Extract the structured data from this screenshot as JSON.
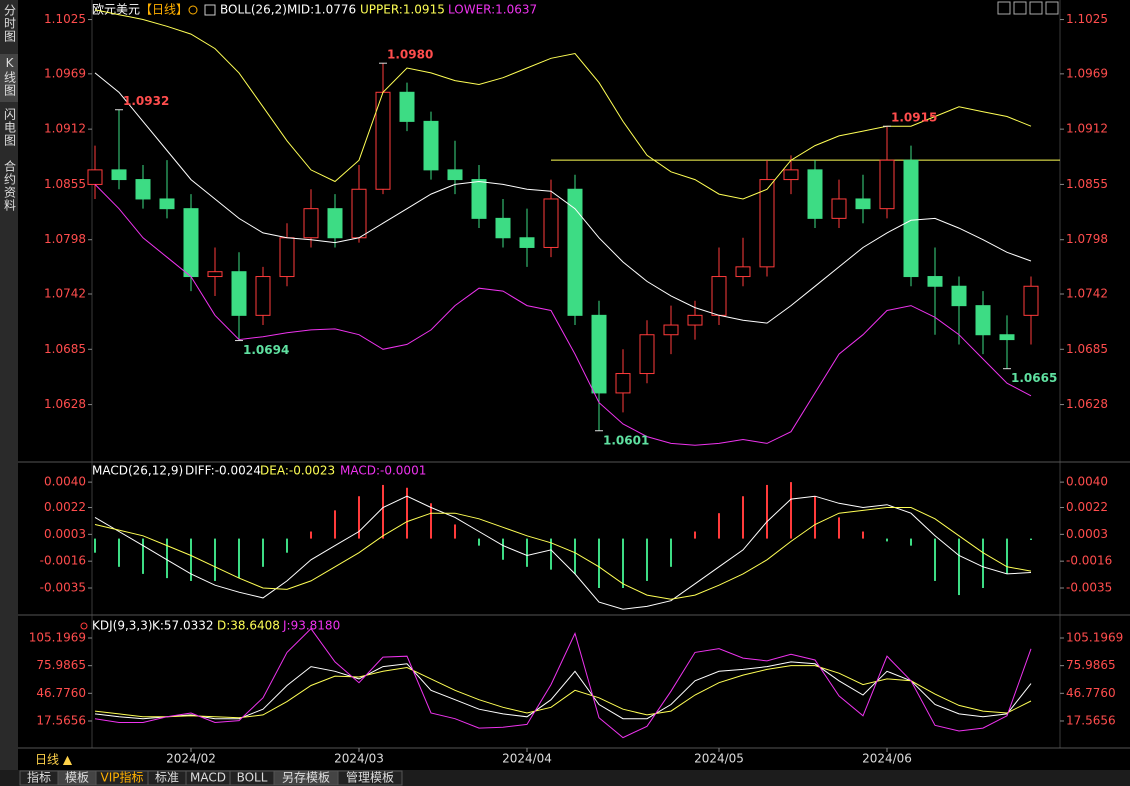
{
  "ui": {
    "side_tabs": [
      "分时图",
      "K线图",
      "闪电图",
      "合约资料"
    ],
    "period_button": "日线 ▲",
    "bottom_tabs": [
      "指标",
      "模板",
      "VIP指标",
      "标准",
      "MACD",
      "BOLL",
      "另存模板",
      "管理模板"
    ]
  },
  "chart_data": {
    "type": "candlestick",
    "title": "欧元美元",
    "period": "【日线】",
    "legend": [
      "BOLL(26,2)",
      "MID:1.0776",
      "UPPER:1.0915",
      "LOWER:1.0637"
    ],
    "categories": [
      null,
      null,
      null,
      null,
      "2024/02",
      null,
      null,
      null,
      null,
      null,
      null,
      "2024/03",
      null,
      null,
      null,
      null,
      null,
      null,
      "2024/04",
      null,
      null,
      null,
      null,
      null,
      null,
      null,
      "2024/05",
      null,
      null,
      null,
      null,
      null,
      null,
      "2024/06",
      null,
      null,
      null,
      null,
      null,
      null
    ],
    "open": [
      1.0855,
      1.087,
      1.086,
      1.084,
      1.083,
      1.076,
      1.0765,
      1.072,
      1.076,
      1.08,
      1.083,
      1.08,
      1.085,
      1.095,
      1.092,
      1.087,
      1.086,
      1.082,
      1.08,
      1.079,
      1.085,
      1.072,
      1.064,
      1.066,
      1.07,
      1.071,
      1.072,
      1.076,
      1.077,
      1.086,
      1.087,
      1.082,
      1.084,
      1.083,
      1.088,
      1.076,
      1.075,
      1.073,
      1.07,
      1.072
    ],
    "close": [
      1.087,
      1.086,
      1.084,
      1.083,
      1.076,
      1.0765,
      1.072,
      1.076,
      1.08,
      1.083,
      1.08,
      1.085,
      1.095,
      1.092,
      1.087,
      1.086,
      1.082,
      1.08,
      1.079,
      1.084,
      1.072,
      1.064,
      1.066,
      1.07,
      1.071,
      1.072,
      1.076,
      1.077,
      1.086,
      1.087,
      1.082,
      1.084,
      1.083,
      1.088,
      1.076,
      1.075,
      1.073,
      1.07,
      1.0695,
      1.075
    ],
    "high": [
      1.0895,
      1.0932,
      1.0875,
      1.088,
      1.0845,
      1.079,
      1.0785,
      1.077,
      1.0815,
      1.085,
      1.0845,
      1.0875,
      1.098,
      1.096,
      1.093,
      1.09,
      1.0875,
      1.084,
      1.083,
      1.086,
      1.0865,
      1.0735,
      1.0685,
      1.0715,
      1.073,
      1.0735,
      1.079,
      1.08,
      1.088,
      1.0885,
      1.088,
      1.086,
      1.0865,
      1.0915,
      1.0895,
      1.079,
      1.076,
      1.0745,
      1.072,
      1.076
    ],
    "low": [
      1.084,
      1.085,
      1.083,
      1.082,
      1.0745,
      1.074,
      1.0694,
      1.071,
      1.075,
      1.079,
      1.079,
      1.0795,
      1.0845,
      1.091,
      1.086,
      1.0845,
      1.081,
      1.079,
      1.077,
      1.078,
      1.071,
      1.0601,
      1.062,
      1.065,
      1.068,
      1.0695,
      1.071,
      1.075,
      1.076,
      1.0845,
      1.081,
      1.081,
      1.0815,
      1.082,
      1.075,
      1.07,
      1.069,
      1.068,
      1.0665,
      1.069
    ],
    "up_color": "#ff3b3b",
    "down_color": "#3ddc84",
    "ylim": [
      1.0576,
      1.104
    ],
    "yticks": [
      1.1025,
      1.0969,
      1.0912,
      1.0855,
      1.0798,
      1.0742,
      1.0685,
      1.0628
    ],
    "boll": {
      "colors": [
        "#ffffff",
        "#ffff55",
        "#ee33ee"
      ],
      "mid": [
        1.097,
        1.095,
        1.092,
        1.089,
        1.086,
        1.084,
        1.082,
        1.0805,
        1.08,
        1.0798,
        1.0795,
        1.08,
        1.0815,
        1.083,
        1.0845,
        1.0855,
        1.0858,
        1.0855,
        1.085,
        1.0848,
        1.083,
        1.08,
        1.0775,
        1.0755,
        1.074,
        1.0728,
        1.072,
        1.0715,
        1.0712,
        1.073,
        1.075,
        1.077,
        1.079,
        1.0805,
        1.0818,
        1.082,
        1.081,
        1.0798,
        1.0785,
        1.0776
      ],
      "upper": [
        1.1035,
        1.103,
        1.1025,
        1.1018,
        1.101,
        1.0995,
        1.097,
        1.0935,
        1.09,
        1.087,
        1.0858,
        1.088,
        1.095,
        1.0975,
        1.097,
        1.0962,
        1.0958,
        1.0965,
        1.0975,
        1.0985,
        1.099,
        1.096,
        1.092,
        1.0885,
        1.0868,
        1.086,
        1.0845,
        1.084,
        1.085,
        1.088,
        1.0895,
        1.0905,
        1.091,
        1.0915,
        1.0915,
        1.0925,
        1.0935,
        1.093,
        1.0925,
        1.0915
      ],
      "lower": [
        1.0855,
        1.083,
        1.08,
        1.078,
        1.076,
        1.072,
        1.0695,
        1.0698,
        1.0702,
        1.0705,
        1.0706,
        1.07,
        1.0685,
        1.069,
        1.0705,
        1.073,
        1.0748,
        1.0745,
        1.073,
        1.0725,
        1.068,
        1.063,
        1.0608,
        1.0595,
        1.0588,
        1.0586,
        1.0588,
        1.0592,
        1.0588,
        1.06,
        1.064,
        1.068,
        1.07,
        1.0725,
        1.073,
        1.0718,
        1.07,
        1.0675,
        1.065,
        1.0637
      ]
    },
    "extremes": [
      {
        "index": 1,
        "value": 1.0932,
        "label": "1.0932"
      },
      {
        "index": 12,
        "value": 1.098,
        "label": "1.0980"
      },
      {
        "index": 33,
        "value": 1.0915,
        "label": "1.0915"
      },
      {
        "index": 6,
        "value": 1.0694,
        "label": "1.0694"
      },
      {
        "index": 21,
        "value": 1.0601,
        "label": "1.0601"
      },
      {
        "index": 38,
        "value": 1.0665,
        "label": "1.0665"
      }
    ],
    "hline": {
      "value": 1.088,
      "start": 19,
      "color": "#ffff55"
    },
    "macd": {
      "legend": [
        "MACD(26,12,9)",
        "DIFF:-0.0024",
        "DEA:-0.0023",
        "MACD:-0.0001"
      ],
      "ylim": [
        -0.0052,
        0.005
      ],
      "yticks": [
        {
          "value": 0.004,
          "label": "0.0040"
        },
        {
          "value": 0.0022,
          "label": "0.0022"
        },
        {
          "value": 0.0003,
          "label": "0.0003"
        },
        {
          "value": -0.0016,
          "label": "-0.0016"
        },
        {
          "value": -0.0035,
          "label": "-0.0035"
        }
      ],
      "diff": [
        0.0015,
        0.0005,
        -0.0005,
        -0.0015,
        -0.0025,
        -0.0033,
        -0.0038,
        -0.0042,
        -0.003,
        -0.0015,
        -0.0005,
        0.0005,
        0.0022,
        0.003,
        0.0022,
        0.0015,
        0.0005,
        -0.0005,
        -0.0012,
        -0.0008,
        -0.0025,
        -0.0045,
        -0.005,
        -0.0048,
        -0.0044,
        -0.0032,
        -0.002,
        -0.0008,
        0.0012,
        0.0028,
        0.003,
        0.0025,
        0.0022,
        0.0024,
        0.0018,
        0.0002,
        -0.0012,
        -0.002,
        -0.0025,
        -0.0024
      ],
      "dea": [
        0.001,
        0.0006,
        0.0002,
        -0.0005,
        -0.0012,
        -0.002,
        -0.0028,
        -0.0035,
        -0.0036,
        -0.003,
        -0.002,
        -0.001,
        0.0002,
        0.0012,
        0.0018,
        0.0018,
        0.0014,
        0.0008,
        0.0002,
        -0.0003,
        -0.001,
        -0.002,
        -0.0032,
        -0.004,
        -0.0043,
        -0.004,
        -0.0033,
        -0.0025,
        -0.0015,
        -0.0002,
        0.001,
        0.0018,
        0.002,
        0.0022,
        0.0022,
        0.0014,
        0.0002,
        -0.001,
        -0.002,
        -0.0023
      ],
      "hist": [
        -0.001,
        -0.002,
        -0.0025,
        -0.0028,
        -0.003,
        -0.003,
        -0.0028,
        -0.002,
        -0.001,
        0.0005,
        0.002,
        0.003,
        0.0038,
        0.0036,
        0.0025,
        0.001,
        -0.0005,
        -0.0015,
        -0.002,
        -0.0022,
        -0.0025,
        -0.0035,
        -0.0035,
        -0.003,
        -0.002,
        0.0005,
        0.0018,
        0.003,
        0.0038,
        0.004,
        0.003,
        0.0015,
        0.0005,
        -0.0002,
        -0.0005,
        -0.003,
        -0.004,
        -0.0035,
        -0.0025,
        -0.0001
      ]
    },
    "kdj": {
      "legend": [
        "KDJ(9,3,3)",
        "K:57.0332",
        "D:38.6408",
        "J:93.8180"
      ],
      "ylim": [
        -7.8,
        124.2
      ],
      "yticks": [
        105.1969,
        75.9865,
        {
          "value": 46.776,
          "label": "46.7760"
        },
        17.5656
      ],
      "k": [
        25,
        22,
        20,
        22,
        24,
        20,
        20,
        30,
        55,
        75,
        70,
        62,
        75,
        78,
        50,
        40,
        30,
        25,
        22,
        40,
        70,
        35,
        20,
        20,
        35,
        60,
        70,
        72,
        75,
        80,
        78,
        60,
        45,
        70,
        60,
        35,
        25,
        22,
        25,
        57.0332
      ],
      "d": [
        28,
        25,
        22,
        22,
        23,
        22,
        21,
        24,
        38,
        55,
        65,
        64,
        70,
        74,
        62,
        50,
        40,
        32,
        26,
        32,
        50,
        42,
        30,
        24,
        28,
        45,
        58,
        66,
        72,
        76,
        76,
        68,
        56,
        62,
        60,
        46,
        34,
        28,
        26,
        38.6408
      ],
      "j": [
        20,
        16,
        16,
        22,
        26,
        16,
        18,
        42,
        90,
        115,
        80,
        58,
        85,
        86,
        26,
        20,
        10,
        11,
        14,
        56,
        110,
        21,
        0,
        12,
        49,
        90,
        94,
        84,
        81,
        88,
        82,
        44,
        23,
        86,
        60,
        13,
        7,
        10,
        23,
        93.818
      ]
    }
  }
}
